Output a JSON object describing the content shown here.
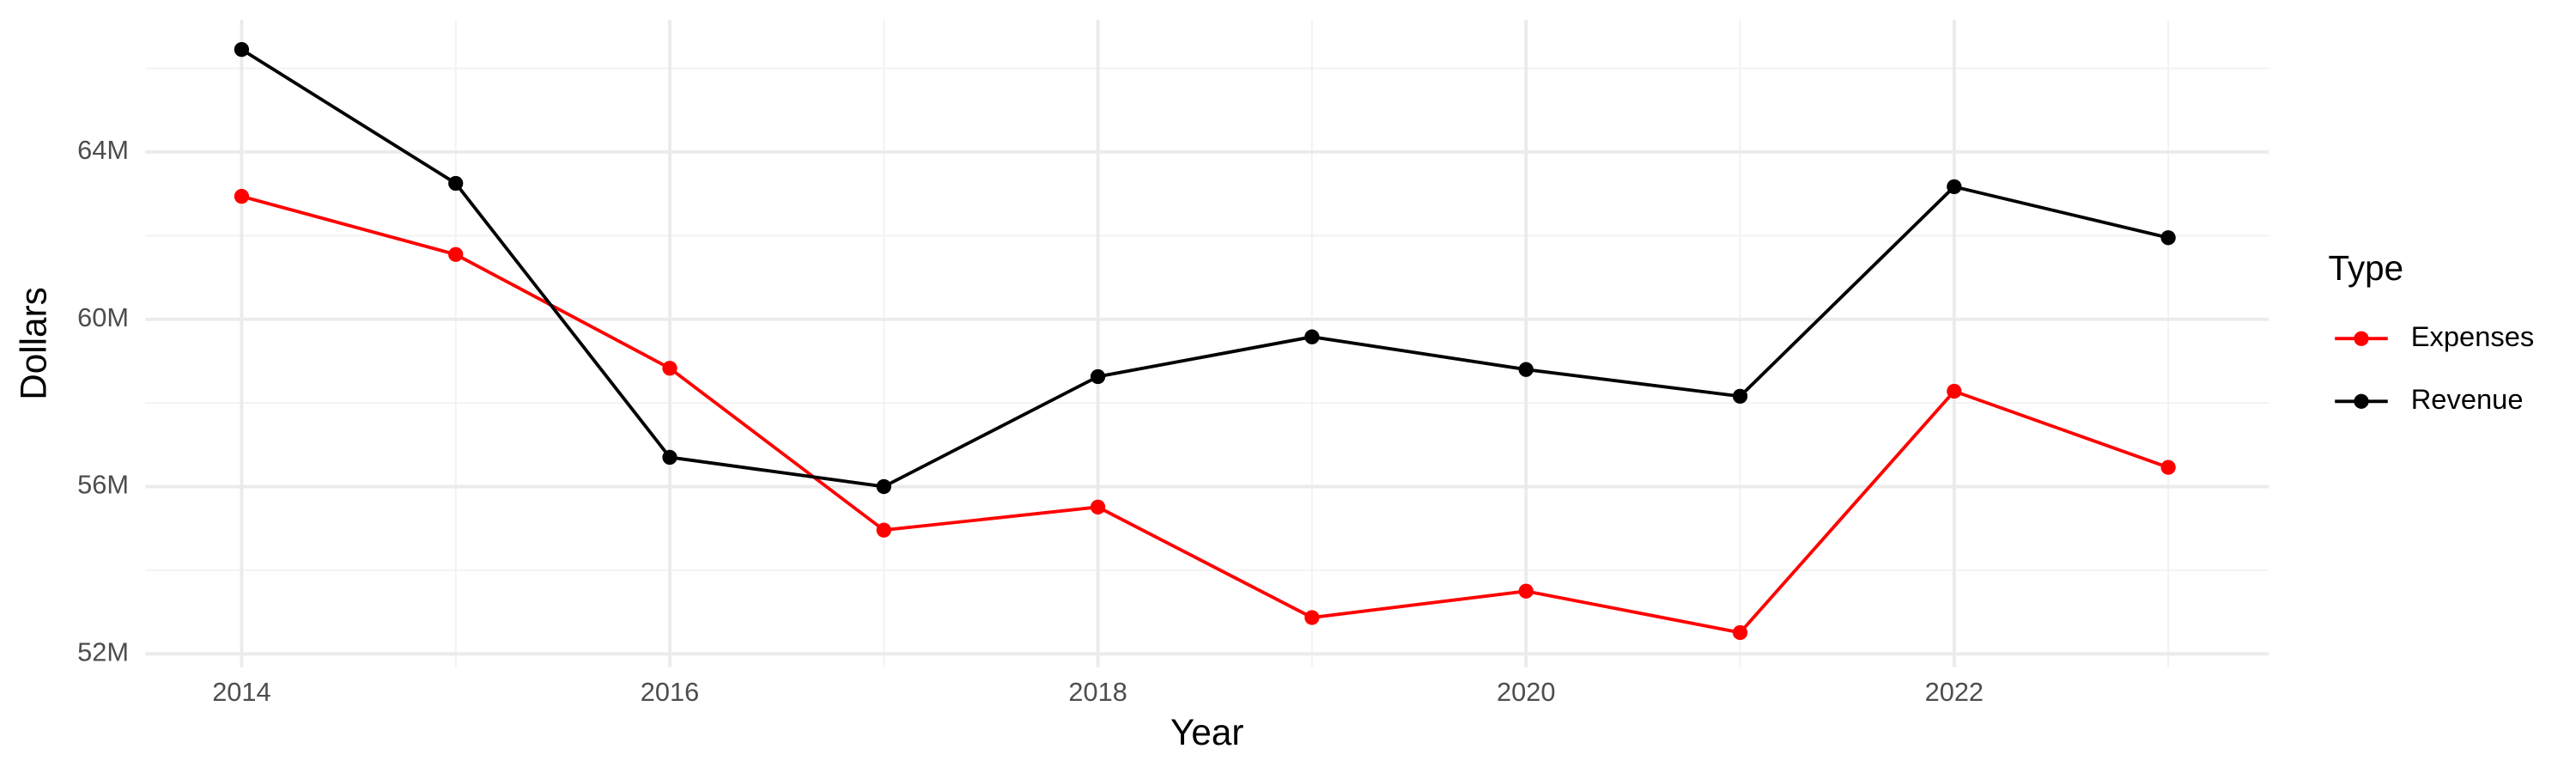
{
  "chart_data": {
    "type": "line",
    "x_label": "Year",
    "y_label": "Dollars",
    "legend_title": "Type",
    "x": [
      2014,
      2015,
      2016,
      2017,
      2018,
      2019,
      2020,
      2021,
      2022,
      2023
    ],
    "series": [
      {
        "name": "Expenses",
        "color": "#ff0000",
        "values": [
          62940000,
          61550000,
          58830000,
          54960000,
          55510000,
          52870000,
          53500000,
          52510000,
          58280000,
          56460000
        ]
      },
      {
        "name": "Revenue",
        "color": "#000000",
        "values": [
          66450000,
          63250000,
          56700000,
          56000000,
          58630000,
          59580000,
          58800000,
          58160000,
          63170000,
          61950000
        ]
      }
    ],
    "xlim": [
      2013.55,
      2023.47
    ],
    "xticks": [
      2014,
      2016,
      2018,
      2020,
      2022
    ],
    "ylim": [
      51680000,
      67160000
    ],
    "yticks": [
      {
        "value": 52000000,
        "label": "52M"
      },
      {
        "value": 56000000,
        "label": "56M"
      },
      {
        "value": 60000000,
        "label": "60M"
      },
      {
        "value": 64000000,
        "label": "64M"
      }
    ],
    "grid": true,
    "legend": "right"
  }
}
